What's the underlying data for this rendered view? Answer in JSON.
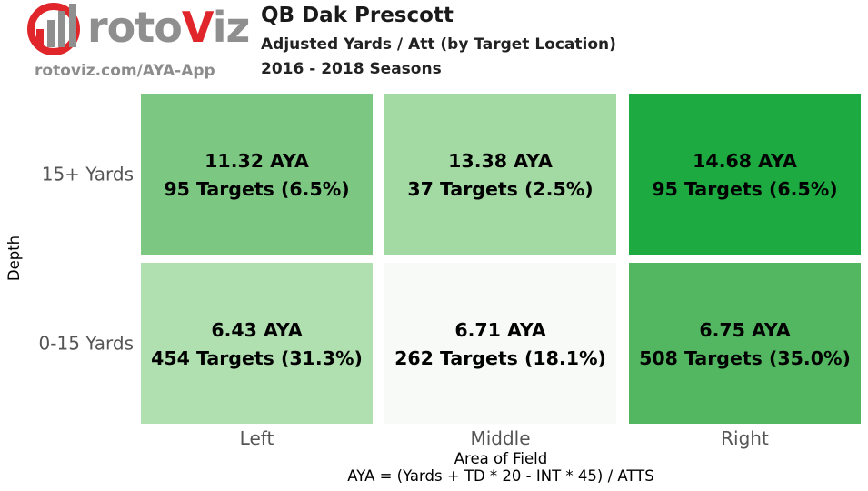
{
  "branding": {
    "logo_word_main": "roto",
    "logo_word_accent": "V",
    "logo_word_tail": "iz",
    "url": "rotoviz.com/AYA-App",
    "accent_color": "#e0262b"
  },
  "header": {
    "title": "QB Dak Prescott",
    "subtitle": "Adjusted Yards / Att (by Target Location)",
    "seasons": "2016 - 2018 Seasons"
  },
  "chart_data": {
    "type": "heatmap",
    "title": "QB Dak Prescott",
    "xlabel": "Area of Field",
    "ylabel": "Depth",
    "note": "AYA = (Yards + TD * 20 - INT * 45) / ATTS",
    "columns": [
      "Left",
      "Middle",
      "Right"
    ],
    "rows": [
      "15+ Yards",
      "0-15 Yards"
    ],
    "cells": [
      [
        {
          "aya": 11.32,
          "aya_label": "11.32 AYA",
          "targets_label": "95 Targets (6.5%)",
          "color": "#7cc883"
        },
        {
          "aya": 13.38,
          "aya_label": "13.38 AYA",
          "targets_label": "37 Targets (2.5%)",
          "color": "#a3d9a3"
        },
        {
          "aya": 14.68,
          "aya_label": "14.68 AYA",
          "targets_label": "95 Targets (6.5%)",
          "color": "#1caa41"
        }
      ],
      [
        {
          "aya": 6.43,
          "aya_label": "6.43 AYA",
          "targets_label": "454 Targets (31.3%)",
          "color": "#b0dfb0"
        },
        {
          "aya": 6.71,
          "aya_label": "6.71 AYA",
          "targets_label": "262 Targets (18.1%)",
          "color": "#f7faf6"
        },
        {
          "aya": 6.75,
          "aya_label": "6.75 AYA",
          "targets_label": "508 Targets (35.0%)",
          "color": "#52b760"
        }
      ]
    ],
    "grid": false,
    "colormap": "greens"
  }
}
